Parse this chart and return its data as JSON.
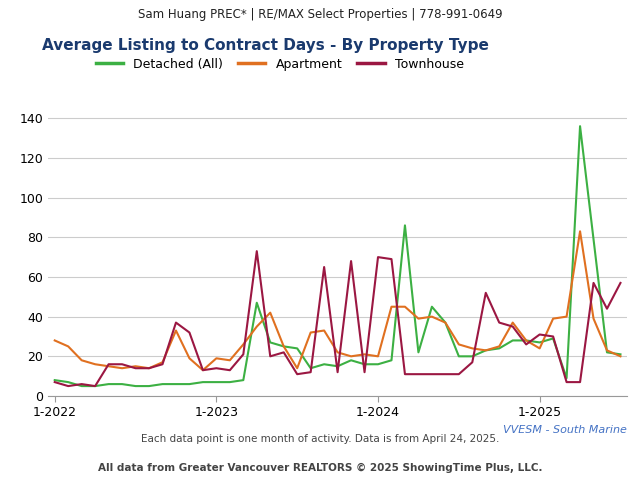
{
  "header": "Sam Huang PREC* | RE/MAX Select Properties | 778-991-0649",
  "title": "Average Listing to Contract Days - By Property Type",
  "watermark": "VVESM - South Marine",
  "footnote1": "Each data point is one month of activity. Data is from April 24, 2025.",
  "footnote2": "All data from Greater Vancouver REALTORS © 2025 ShowingTime Plus, LLC.",
  "series": {
    "Detached (All)": {
      "color": "#3cb043",
      "data": [
        8,
        7,
        5,
        5,
        6,
        6,
        5,
        5,
        6,
        6,
        6,
        7,
        7,
        7,
        8,
        47,
        27,
        25,
        24,
        14,
        16,
        15,
        18,
        16,
        16,
        18,
        86,
        22,
        45,
        37,
        20,
        20,
        23,
        24,
        28,
        28,
        27,
        29,
        9,
        136,
        79,
        22,
        21
      ]
    },
    "Apartment": {
      "color": "#e07020",
      "data": [
        28,
        25,
        18,
        16,
        15,
        14,
        15,
        14,
        17,
        33,
        19,
        13,
        19,
        18,
        26,
        35,
        42,
        25,
        14,
        32,
        33,
        22,
        20,
        21,
        20,
        45,
        45,
        39,
        40,
        37,
        26,
        24,
        23,
        25,
        37,
        28,
        24,
        39,
        40,
        83,
        39,
        23,
        20
      ]
    },
    "Townhouse": {
      "color": "#9b1742",
      "data": [
        7,
        5,
        6,
        5,
        16,
        16,
        14,
        14,
        16,
        37,
        32,
        13,
        14,
        13,
        21,
        73,
        20,
        22,
        11,
        12,
        65,
        12,
        68,
        12,
        70,
        69,
        11,
        11,
        11,
        11,
        11,
        17,
        52,
        37,
        35,
        26,
        31,
        30,
        7,
        7,
        57,
        44,
        57
      ]
    }
  },
  "x_tick_positions": [
    0,
    12,
    24,
    36
  ],
  "x_tick_labels": [
    "1-2022",
    "1-2023",
    "1-2024",
    "1-2025"
  ],
  "ylim": [
    0,
    150
  ],
  "yticks": [
    0,
    20,
    40,
    60,
    80,
    100,
    120,
    140
  ],
  "bg_color": "#ffffff",
  "header_bg": "#eeeeee",
  "title_color": "#1a3a6e",
  "grid_color": "#cccccc",
  "watermark_color": "#4472c4",
  "footnote_color": "#444444"
}
